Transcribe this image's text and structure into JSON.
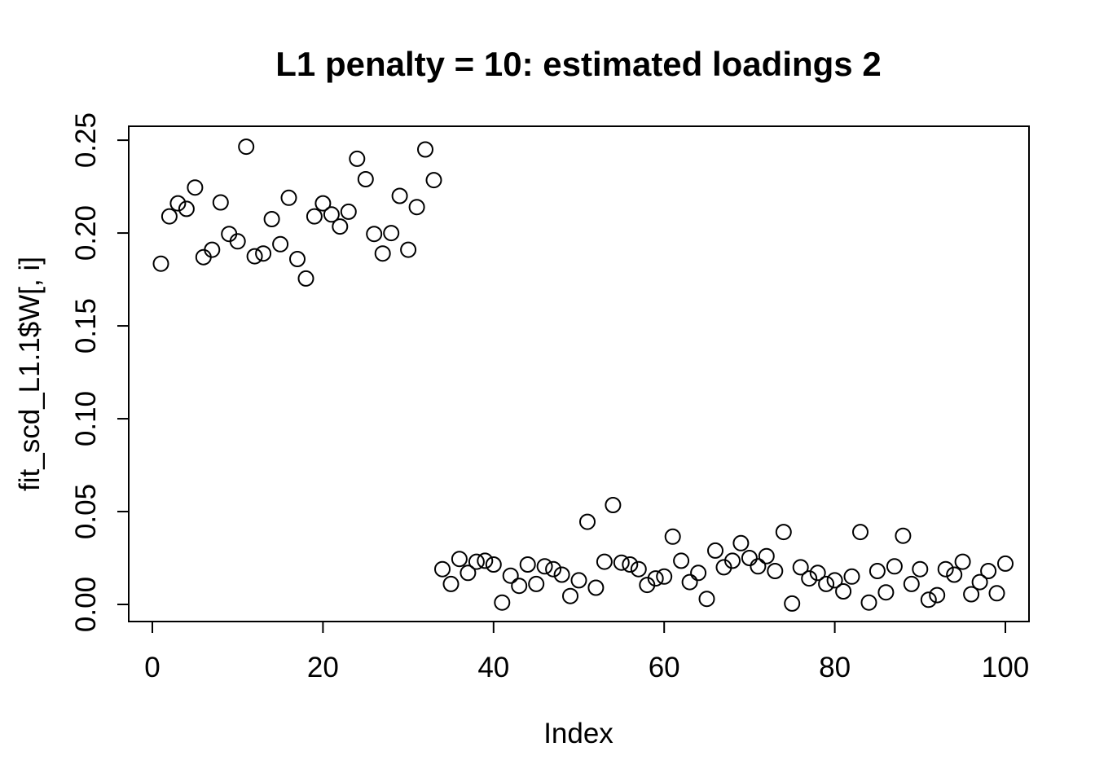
{
  "chart_data": {
    "type": "scatter",
    "title": "L1 penalty = 10: estimated loadings 2",
    "xlabel": "Index",
    "ylabel": "fit_scd_L1.1$W[, i]",
    "marker": "open-circle",
    "point_color": "#000000",
    "background_color": "#ffffff",
    "grid": false,
    "legend": null,
    "x_ticks": [
      "0",
      "20",
      "40",
      "60",
      "80",
      "100"
    ],
    "y_ticks": [
      "0.00",
      "0.05",
      "0.10",
      "0.15",
      "0.20",
      "0.25"
    ],
    "xlim": [
      -2.77,
      102.77
    ],
    "ylim": [
      -0.00921,
      0.2575
    ],
    "x": [
      1,
      2,
      3,
      4,
      5,
      6,
      7,
      8,
      9,
      10,
      11,
      12,
      13,
      14,
      15,
      16,
      17,
      18,
      19,
      20,
      21,
      22,
      23,
      24,
      25,
      26,
      27,
      28,
      29,
      30,
      31,
      32,
      33,
      34,
      35,
      36,
      37,
      38,
      39,
      40,
      41,
      42,
      43,
      44,
      45,
      46,
      47,
      48,
      49,
      50,
      51,
      52,
      53,
      54,
      55,
      56,
      57,
      58,
      59,
      60,
      61,
      62,
      63,
      64,
      65,
      66,
      67,
      68,
      69,
      70,
      71,
      72,
      73,
      74,
      75,
      76,
      77,
      78,
      79,
      80,
      81,
      82,
      83,
      84,
      85,
      86,
      87,
      88,
      89,
      90,
      91,
      92,
      93,
      94,
      95,
      96,
      97,
      98,
      99,
      100
    ],
    "values": [
      0.1835,
      0.209,
      0.216,
      0.213,
      0.2245,
      0.187,
      0.191,
      0.2165,
      0.1995,
      0.1955,
      0.2465,
      0.1875,
      0.189,
      0.2075,
      0.194,
      0.219,
      0.186,
      0.1755,
      0.209,
      0.216,
      0.21,
      0.2035,
      0.2115,
      0.24,
      0.229,
      0.1995,
      0.189,
      0.2,
      0.22,
      0.191,
      0.214,
      0.245,
      0.2285,
      0.019,
      0.011,
      0.0245,
      0.017,
      0.023,
      0.0235,
      0.0215,
      0.001,
      0.0155,
      0.01,
      0.0215,
      0.011,
      0.0205,
      0.019,
      0.016,
      0.0045,
      0.013,
      0.0445,
      0.009,
      0.023,
      0.0535,
      0.0225,
      0.0215,
      0.019,
      0.0105,
      0.014,
      0.015,
      0.0365,
      0.0235,
      0.012,
      0.017,
      0.003,
      0.029,
      0.02,
      0.0235,
      0.033,
      0.025,
      0.0205,
      0.026,
      0.018,
      0.039,
      0.0005,
      0.02,
      0.014,
      0.017,
      0.011,
      0.013,
      0.007,
      0.015,
      0.039,
      0.001,
      0.018,
      0.0065,
      0.0205,
      0.037,
      0.011,
      0.019,
      0.0025,
      0.005,
      0.019,
      0.016,
      0.023,
      0.0055,
      0.012,
      0.018,
      0.006,
      0.022
    ]
  }
}
